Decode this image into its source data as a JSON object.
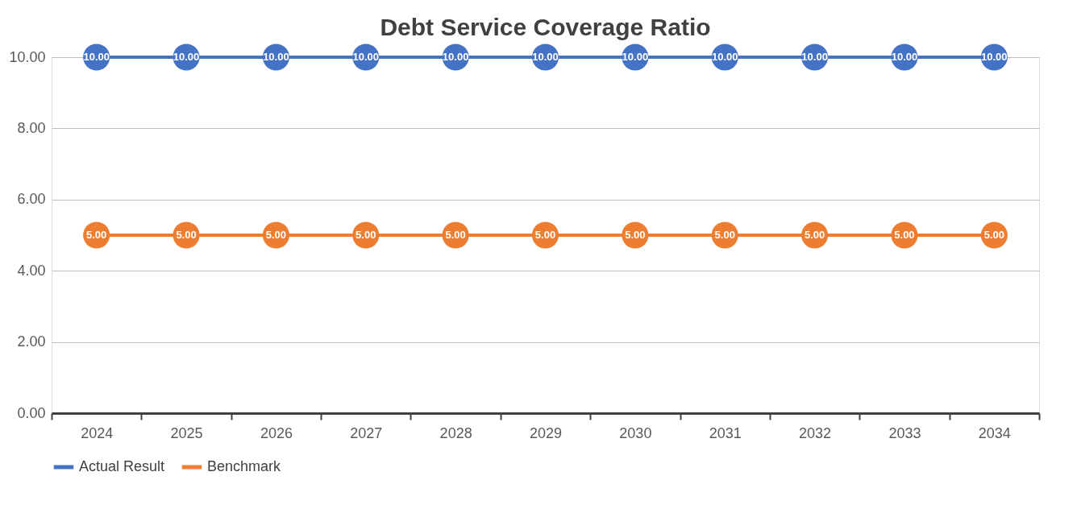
{
  "chart_data": {
    "type": "line",
    "title": "Debt Service Coverage Ratio",
    "categories": [
      "2024",
      "2025",
      "2026",
      "2027",
      "2028",
      "2029",
      "2030",
      "2031",
      "2032",
      "2033",
      "2034"
    ],
    "series": [
      {
        "name": "Actual Result",
        "color": "#4472c4",
        "values": [
          10,
          10,
          10,
          10,
          10,
          10,
          10,
          10,
          10,
          10,
          10
        ],
        "value_labels": [
          "10.00",
          "10.00",
          "10.00",
          "10.00",
          "10.00",
          "10.00",
          "10.00",
          "10.00",
          "10.00",
          "10.00",
          "10.00"
        ]
      },
      {
        "name": "Benchmark",
        "color": "#ed7d31",
        "values": [
          5,
          5,
          5,
          5,
          5,
          5,
          5,
          5,
          5,
          5,
          5
        ],
        "value_labels": [
          "5.00",
          "5.00",
          "5.00",
          "5.00",
          "5.00",
          "5.00",
          "5.00",
          "5.00",
          "5.00",
          "5.00",
          "5.00"
        ]
      }
    ],
    "ylim": [
      0,
      10
    ],
    "yticks": [
      {
        "value": 0,
        "label": "0.00"
      },
      {
        "value": 2,
        "label": "2.00"
      },
      {
        "value": 4,
        "label": "4.00"
      },
      {
        "value": 6,
        "label": "6.00"
      },
      {
        "value": 8,
        "label": "8.00"
      },
      {
        "value": 10,
        "label": "10.00"
      }
    ],
    "grid": "y",
    "legend": "bottom",
    "marker": "circle",
    "line_style": "solid"
  }
}
